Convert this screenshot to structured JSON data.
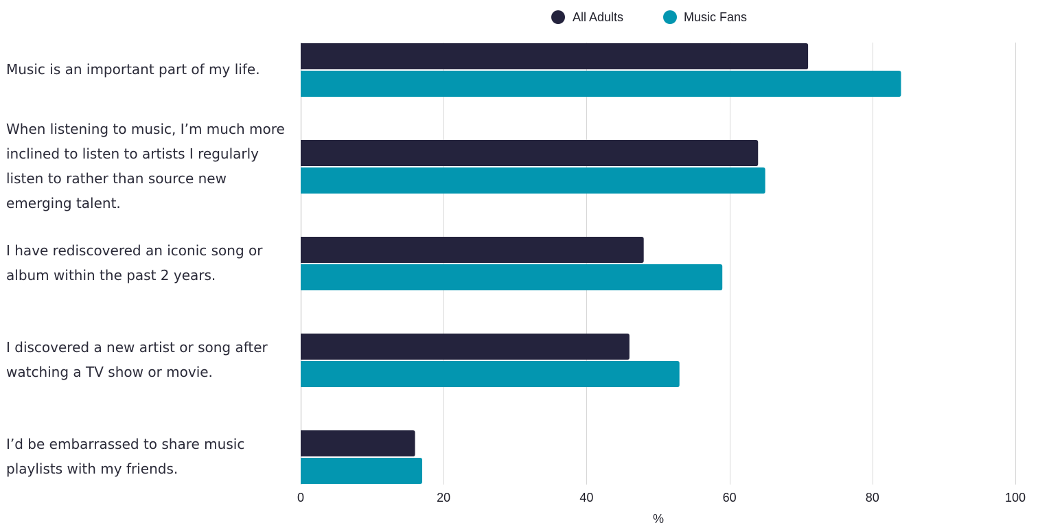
{
  "chart_data": {
    "type": "bar",
    "orientation": "horizontal",
    "title": "",
    "xlabel": "%",
    "ylabel": "",
    "xlim": [
      0,
      100
    ],
    "x_ticks": [
      0,
      20,
      40,
      60,
      80,
      100
    ],
    "grid": true,
    "legend_position": "top",
    "categories": [
      "Music is an important part of my life.",
      "When listening to music, I’m much more inclined to listen to artists I regularly listen to rather than source new emerging talent.",
      "I have rediscovered an iconic song or album within the past 2 years.",
      "I discovered a new artist or song after watching a TV show or movie.",
      "I’d be embarrassed to share music playlists with my friends."
    ],
    "series": [
      {
        "name": "All Adults",
        "color": "#24233d",
        "values": [
          71,
          64,
          48,
          46,
          16
        ]
      },
      {
        "name": "Music Fans",
        "color": "#0396b0",
        "values": [
          84,
          65,
          59,
          53,
          17
        ]
      }
    ]
  }
}
